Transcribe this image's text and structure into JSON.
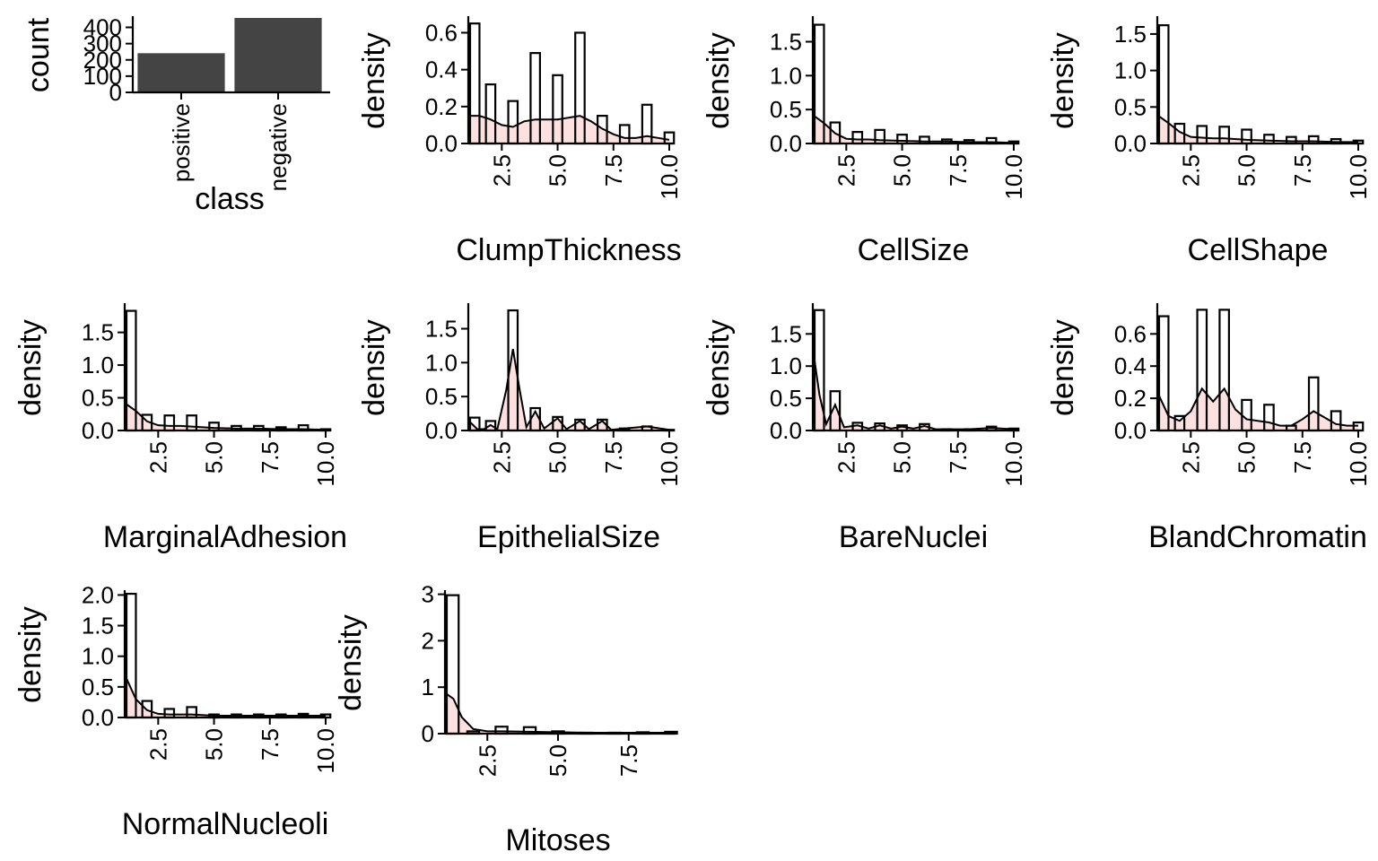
{
  "chart_data": [
    {
      "type": "bar",
      "xlabel": "class",
      "ylabel": "count",
      "categories": [
        "positive",
        "negative"
      ],
      "values": [
        241,
        458
      ],
      "ylim": [
        0,
        458
      ],
      "yticks": [
        0,
        100,
        200,
        300,
        400
      ],
      "bar_color": "#444444"
    },
    {
      "type": "bar",
      "xlabel": "ClumpThickness",
      "ylabel": "density",
      "x": [
        1,
        2,
        3,
        4,
        5,
        6,
        7,
        8,
        9,
        10
      ],
      "values": [
        0.65,
        0.32,
        0.23,
        0.49,
        0.37,
        0.6,
        0.15,
        0.1,
        0.21,
        0.06
      ],
      "density_curve": [
        [
          1,
          0.15
        ],
        [
          1.5,
          0.15
        ],
        [
          2,
          0.13
        ],
        [
          2.5,
          0.1
        ],
        [
          3,
          0.09
        ],
        [
          3.5,
          0.12
        ],
        [
          4,
          0.13
        ],
        [
          4.5,
          0.13
        ],
        [
          5,
          0.13
        ],
        [
          5.5,
          0.14
        ],
        [
          6,
          0.15
        ],
        [
          6.5,
          0.12
        ],
        [
          7,
          0.08
        ],
        [
          7.5,
          0.05
        ],
        [
          8,
          0.03
        ],
        [
          8.5,
          0.03
        ],
        [
          9,
          0.04
        ],
        [
          9.5,
          0.03
        ],
        [
          10,
          0.02
        ]
      ],
      "xlim": [
        1,
        10
      ],
      "ylim": [
        0,
        0.68
      ],
      "xticks": [
        2.5,
        5.0,
        7.5,
        10.0
      ],
      "yticks": [
        0.0,
        0.2,
        0.4,
        0.6
      ],
      "tick_decimals": 1,
      "fill_color": "#fde1e1"
    },
    {
      "type": "bar",
      "xlabel": "CellSize",
      "ylabel": "density",
      "x": [
        1,
        2,
        3,
        4,
        5,
        6,
        7,
        8,
        9,
        10
      ],
      "values": [
        1.75,
        0.31,
        0.17,
        0.2,
        0.13,
        0.1,
        0.06,
        0.05,
        0.08,
        0.03
      ],
      "density_curve": [
        [
          1,
          0.42
        ],
        [
          1.5,
          0.3
        ],
        [
          2,
          0.15
        ],
        [
          2.5,
          0.07
        ],
        [
          3,
          0.06
        ],
        [
          3.5,
          0.06
        ],
        [
          4,
          0.05
        ],
        [
          5,
          0.04
        ],
        [
          6,
          0.03
        ],
        [
          7,
          0.03
        ],
        [
          8,
          0.02
        ],
        [
          9,
          0.02
        ],
        [
          10,
          0.01
        ]
      ],
      "xlim": [
        1,
        10
      ],
      "ylim": [
        0,
        1.85
      ],
      "xticks": [
        2.5,
        5.0,
        7.5,
        10.0
      ],
      "yticks": [
        0.0,
        0.5,
        1.0,
        1.5
      ],
      "tick_decimals": 1,
      "fill_color": "#fde1e1"
    },
    {
      "type": "bar",
      "xlabel": "CellShape",
      "ylabel": "density",
      "x": [
        1,
        2,
        3,
        4,
        5,
        6,
        7,
        8,
        9,
        10
      ],
      "values": [
        1.62,
        0.27,
        0.24,
        0.23,
        0.19,
        0.12,
        0.09,
        0.1,
        0.06,
        0.04
      ],
      "density_curve": [
        [
          1,
          0.39
        ],
        [
          1.5,
          0.28
        ],
        [
          2,
          0.16
        ],
        [
          2.5,
          0.09
        ],
        [
          3,
          0.08
        ],
        [
          3.5,
          0.07
        ],
        [
          4,
          0.07
        ],
        [
          5,
          0.05
        ],
        [
          6,
          0.04
        ],
        [
          7,
          0.03
        ],
        [
          8,
          0.03
        ],
        [
          9,
          0.02
        ],
        [
          10,
          0.02
        ]
      ],
      "xlim": [
        1,
        10
      ],
      "ylim": [
        0,
        1.72
      ],
      "xticks": [
        2.5,
        5.0,
        7.5,
        10.0
      ],
      "yticks": [
        0.0,
        0.5,
        1.0,
        1.5
      ],
      "tick_decimals": 1,
      "fill_color": "#fde1e1"
    },
    {
      "type": "bar",
      "xlabel": "MarginalAdhesion",
      "ylabel": "density",
      "x": [
        1,
        2,
        3,
        4,
        5,
        6,
        7,
        8,
        9,
        10
      ],
      "values": [
        1.83,
        0.24,
        0.23,
        0.23,
        0.12,
        0.07,
        0.07,
        0.05,
        0.08,
        0.02
      ],
      "density_curve": [
        [
          1,
          0.42
        ],
        [
          1.5,
          0.3
        ],
        [
          2,
          0.14
        ],
        [
          2.5,
          0.08
        ],
        [
          3,
          0.07
        ],
        [
          3.5,
          0.07
        ],
        [
          4,
          0.06
        ],
        [
          5,
          0.04
        ],
        [
          6,
          0.03
        ],
        [
          7,
          0.03
        ],
        [
          8,
          0.02
        ],
        [
          9,
          0.02
        ],
        [
          10,
          0.01
        ]
      ],
      "xlim": [
        1,
        10
      ],
      "ylim": [
        0,
        1.92
      ],
      "xticks": [
        2.5,
        5.0,
        7.5,
        10.0
      ],
      "yticks": [
        0.0,
        0.5,
        1.0,
        1.5
      ],
      "tick_decimals": 1,
      "fill_color": "#fde1e1"
    },
    {
      "type": "bar",
      "xlabel": "EpithelialSize",
      "ylabel": "density",
      "x": [
        1,
        2,
        3,
        4,
        5,
        6,
        7,
        8,
        9,
        10
      ],
      "values": [
        0.19,
        0.14,
        1.77,
        0.33,
        0.2,
        0.16,
        0.16,
        0.03,
        0.06,
        0.01
      ],
      "density_curve": [
        [
          1,
          0.15
        ],
        [
          1.4,
          0.02
        ],
        [
          1.7,
          0.02
        ],
        [
          2,
          0.08
        ],
        [
          2.3,
          0.02
        ],
        [
          2.7,
          0.6
        ],
        [
          3,
          1.2
        ],
        [
          3.3,
          0.6
        ],
        [
          3.6,
          0.05
        ],
        [
          4,
          0.28
        ],
        [
          4.4,
          0.03
        ],
        [
          5,
          0.18
        ],
        [
          5.4,
          0.02
        ],
        [
          6,
          0.14
        ],
        [
          6.4,
          0.02
        ],
        [
          7,
          0.14
        ],
        [
          7.4,
          0.01
        ],
        [
          8,
          0.03
        ],
        [
          9,
          0.06
        ],
        [
          10,
          0.01
        ]
      ],
      "xlim": [
        1,
        10
      ],
      "ylim": [
        0,
        1.85
      ],
      "xticks": [
        2.5,
        5.0,
        7.5,
        10.0
      ],
      "yticks": [
        0.0,
        0.5,
        1.0,
        1.5
      ],
      "tick_decimals": 1,
      "fill_color": "#fde1e1"
    },
    {
      "type": "bar",
      "xlabel": "BareNuclei",
      "ylabel": "density",
      "x": [
        1,
        2,
        3,
        4,
        5,
        6,
        7,
        8,
        9,
        10
      ],
      "values": [
        1.87,
        0.61,
        0.12,
        0.11,
        0.08,
        0.1,
        0.02,
        0.02,
        0.06,
        0.03
      ],
      "density_curve": [
        [
          1,
          1.28
        ],
        [
          1.3,
          0.55
        ],
        [
          1.6,
          0.1
        ],
        [
          2,
          0.4
        ],
        [
          2.4,
          0.05
        ],
        [
          3,
          0.08
        ],
        [
          3.5,
          0.03
        ],
        [
          4,
          0.08
        ],
        [
          4.5,
          0.03
        ],
        [
          5,
          0.06
        ],
        [
          5.5,
          0.03
        ],
        [
          6,
          0.07
        ],
        [
          6.5,
          0.02
        ],
        [
          7,
          0.02
        ],
        [
          8,
          0.02
        ],
        [
          9,
          0.04
        ],
        [
          10,
          0.02
        ]
      ],
      "xlim": [
        1,
        10
      ],
      "ylim": [
        0,
        1.95
      ],
      "xticks": [
        2.5,
        5.0,
        7.5,
        10.0
      ],
      "yticks": [
        0.0,
        0.5,
        1.0,
        1.5
      ],
      "tick_decimals": 1,
      "fill_color": "#fde1e1"
    },
    {
      "type": "bar",
      "xlabel": "BlandChromatin",
      "ylabel": "density",
      "x": [
        1,
        2,
        3,
        4,
        5,
        6,
        7,
        8,
        9,
        10
      ],
      "values": [
        0.71,
        0.09,
        0.75,
        0.75,
        0.19,
        0.16,
        0.03,
        0.33,
        0.12,
        0.05
      ],
      "density_curve": [
        [
          1,
          0.24
        ],
        [
          1.5,
          0.09
        ],
        [
          2,
          0.06
        ],
        [
          2.5,
          0.12
        ],
        [
          3,
          0.26
        ],
        [
          3.5,
          0.18
        ],
        [
          4,
          0.26
        ],
        [
          4.5,
          0.13
        ],
        [
          5,
          0.07
        ],
        [
          5.5,
          0.06
        ],
        [
          6,
          0.05
        ],
        [
          6.5,
          0.03
        ],
        [
          7,
          0.03
        ],
        [
          7.5,
          0.07
        ],
        [
          8,
          0.12
        ],
        [
          8.5,
          0.08
        ],
        [
          9,
          0.04
        ],
        [
          9.5,
          0.03
        ],
        [
          10,
          0.03
        ]
      ],
      "xlim": [
        1,
        10
      ],
      "ylim": [
        0,
        0.78
      ],
      "xticks": [
        2.5,
        5.0,
        7.5,
        10.0
      ],
      "yticks": [
        0.0,
        0.2,
        0.4,
        0.6
      ],
      "tick_decimals": 1,
      "fill_color": "#fde1e1"
    },
    {
      "type": "bar",
      "xlabel": "NormalNucleoli",
      "ylabel": "density",
      "x": [
        1,
        2,
        3,
        4,
        5,
        6,
        7,
        8,
        9,
        10
      ],
      "values": [
        2.02,
        0.27,
        0.14,
        0.17,
        0.05,
        0.05,
        0.05,
        0.05,
        0.06,
        0.05
      ],
      "density_curve": [
        [
          1,
          0.7
        ],
        [
          1.5,
          0.3
        ],
        [
          2,
          0.12
        ],
        [
          2.5,
          0.06
        ],
        [
          3,
          0.05
        ],
        [
          3.5,
          0.05
        ],
        [
          4,
          0.05
        ],
        [
          5,
          0.03
        ],
        [
          6,
          0.03
        ],
        [
          7,
          0.03
        ],
        [
          8,
          0.03
        ],
        [
          9,
          0.03
        ],
        [
          10,
          0.03
        ]
      ],
      "xlim": [
        1,
        10
      ],
      "ylim": [
        0,
        2.05
      ],
      "xticks": [
        2.5,
        5.0,
        7.5,
        10.0
      ],
      "yticks": [
        0.0,
        0.5,
        1.0,
        1.5,
        2.0
      ],
      "tick_decimals": 1,
      "fill_color": "#fde1e1"
    },
    {
      "type": "bar",
      "xlabel": "Mitoses",
      "ylabel": "density",
      "x": [
        1,
        2,
        3,
        4,
        5,
        6,
        7,
        8,
        9
      ],
      "values": [
        2.98,
        0.05,
        0.15,
        0.14,
        0.05,
        0.02,
        0.02,
        0.03,
        0.04
      ],
      "density_curve": [
        [
          1,
          0.88
        ],
        [
          1.3,
          0.75
        ],
        [
          1.6,
          0.35
        ],
        [
          2,
          0.1
        ],
        [
          2.5,
          0.05
        ],
        [
          3,
          0.05
        ],
        [
          4,
          0.04
        ],
        [
          5,
          0.03
        ],
        [
          6,
          0.02
        ],
        [
          7,
          0.02
        ],
        [
          8,
          0.02
        ],
        [
          9,
          0.02
        ]
      ],
      "xlim": [
        1,
        9
      ],
      "ylim": [
        0,
        3.05
      ],
      "xticks": [
        2.5,
        5.0,
        7.5
      ],
      "yticks": [
        0,
        1,
        2,
        3
      ],
      "tick_decimals": 0,
      "fill_color": "#fde1e1"
    }
  ]
}
